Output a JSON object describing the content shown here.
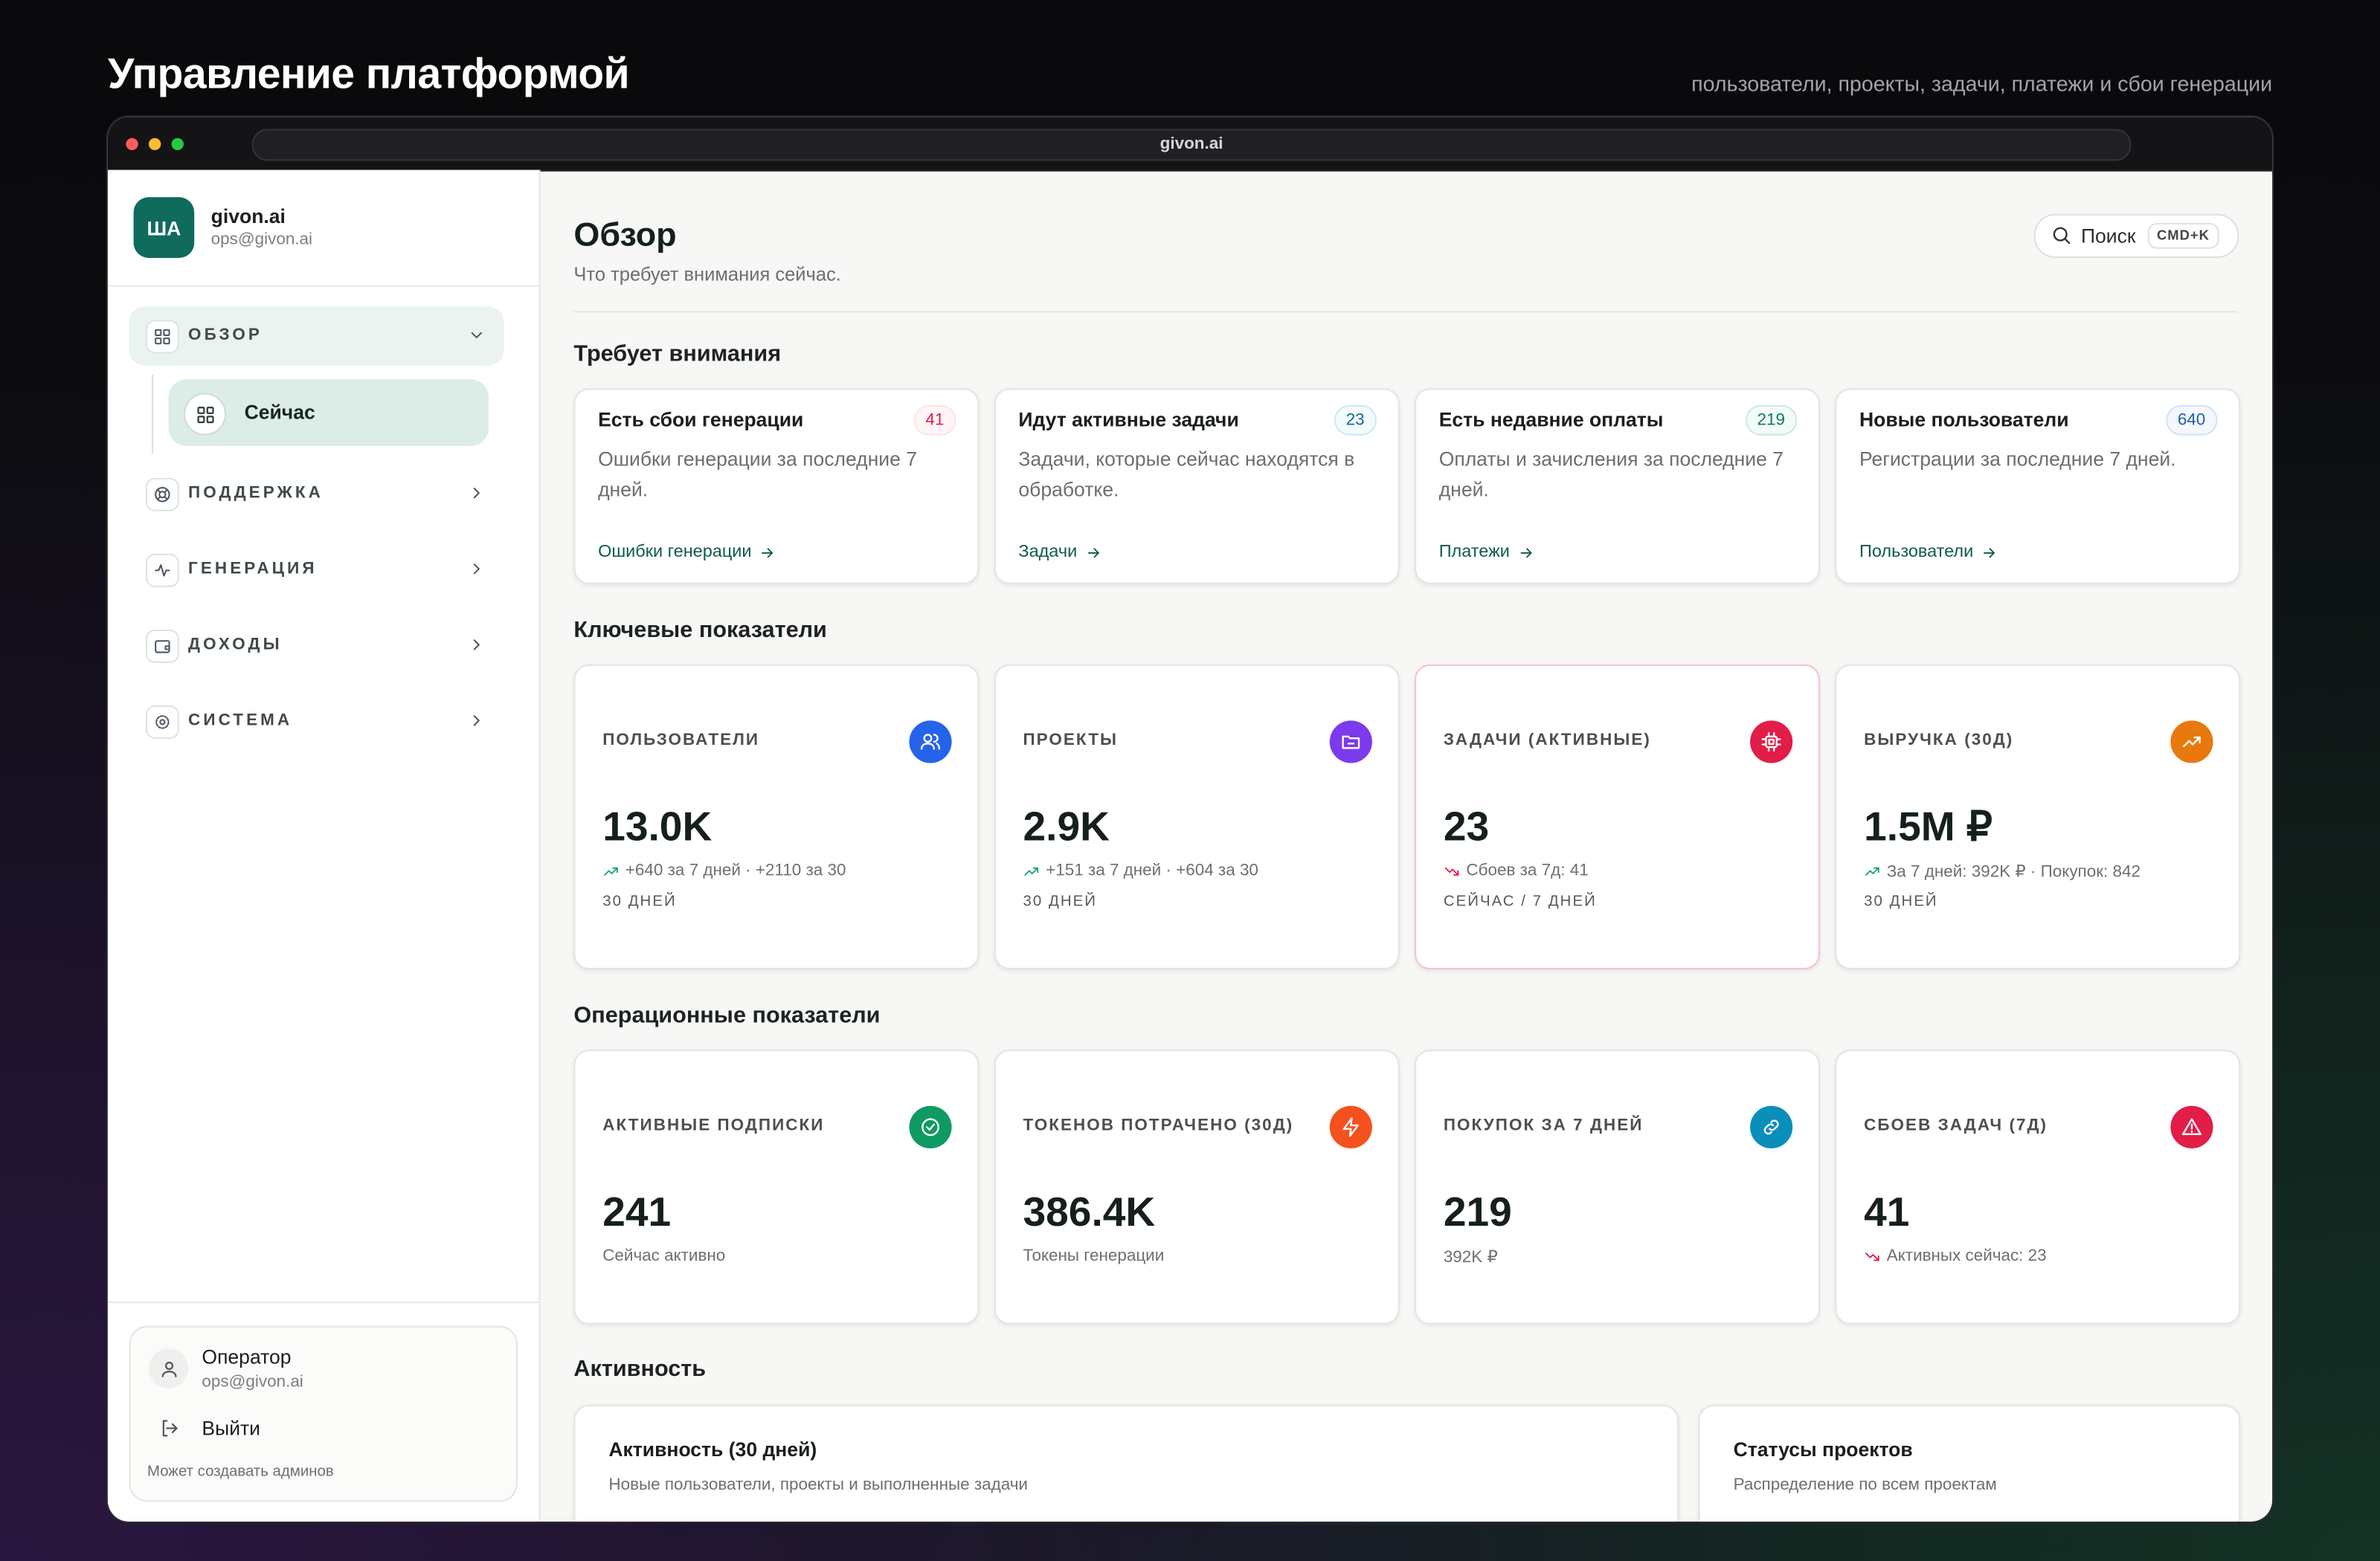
{
  "header": {
    "title": "Управление платформой",
    "subtitle": "пользователи, проекты, задачи, платежи и сбои генерации"
  },
  "browser": {
    "url": "givon.ai"
  },
  "sidebar": {
    "brand": {
      "avatar": "ША",
      "name": "givon.ai",
      "email": "ops@givon.ai"
    },
    "nav": [
      {
        "label": "ОБЗОР",
        "children": [
          "Сейчас"
        ]
      },
      {
        "label": "ПОДДЕРЖКА"
      },
      {
        "label": "ГЕНЕРАЦИЯ"
      },
      {
        "label": "ДОХОДЫ"
      },
      {
        "label": "СИСТЕМА"
      }
    ],
    "user": {
      "name": "Оператор",
      "email": "ops@givon.ai",
      "logout": "Выйти",
      "note": "Может создавать админов"
    }
  },
  "main": {
    "title": "Обзор",
    "subtitle": "Что требует внимания сейчас.",
    "search": {
      "label": "Поиск",
      "shortcut": "CMD+K"
    }
  },
  "attention": {
    "heading": "Требует внимания",
    "cards": [
      {
        "title": "Есть сбои генерации",
        "count": 41,
        "description": "Ошибки генерации за последние 7 дней.",
        "link": "Ошибки генерации"
      },
      {
        "title": "Идут активные задачи",
        "count": 23,
        "description": "Задачи, которые сейчас находятся в обработке.",
        "link": "Задачи"
      },
      {
        "title": "Есть недавние оплаты",
        "count": 219,
        "description": "Оплаты и зачисления за последние 7 дней.",
        "link": "Платежи"
      },
      {
        "title": "Новые пользователи",
        "count": 640,
        "description": "Регистрации за последние 7 дней.",
        "link": "Пользователи"
      }
    ]
  },
  "key_metrics": {
    "heading": "Ключевые показатели",
    "cards": [
      {
        "label": "ПОЛЬЗОВАТЕЛИ",
        "value": "13.0K",
        "detail": "+640 за 7 дней · +2110 за 30",
        "period": "30 ДНЕЙ",
        "trend": "up",
        "color": "#2563eb"
      },
      {
        "label": "ПРОЕКТЫ",
        "value": "2.9K",
        "detail": "+151 за 7 дней · +604 за 30",
        "period": "30 ДНЕЙ",
        "trend": "up",
        "color": "#7c3aed"
      },
      {
        "label": "ЗАДАЧИ (АКТИВНЫЕ)",
        "value": 23,
        "detail": "Сбоев за 7д: 41",
        "period": "СЕЙЧАС / 7 ДНЕЙ",
        "trend": "down",
        "color": "#e11d48"
      },
      {
        "label": "ВЫРУЧКА (30Д)",
        "value": "1.5M ₽",
        "detail": "За 7 дней: 392K ₽ · Покупок: 842",
        "period": "30 ДНЕЙ",
        "trend": "up",
        "color": "#e8790c"
      }
    ]
  },
  "ops_metrics": {
    "heading": "Операционные показатели",
    "cards": [
      {
        "label": "АКТИВНЫЕ ПОДПИСКИ",
        "value": 241,
        "detail": "Сейчас активно",
        "color": "#0f9a63"
      },
      {
        "label": "ТОКЕНОВ ПОТРАЧЕНО (30Д)",
        "value": "386.4K",
        "detail": "Токены генерации",
        "color": "#f4511e"
      },
      {
        "label": "ПОКУПОК ЗА 7 ДНЕЙ",
        "value": 219,
        "detail": "392K ₽",
        "color": "#0a8fba"
      },
      {
        "label": "СБОЕВ ЗАДАЧ (7Д)",
        "value": 41,
        "detail": "Активных сейчас: 23",
        "trend": "down",
        "color": "#e11d48"
      }
    ]
  },
  "activity": {
    "heading": "Активность",
    "panels": [
      {
        "title": "Активность (30 дней)",
        "subtitle": "Новые пользователи, проекты и выполненные задачи"
      },
      {
        "title": "Статусы проектов",
        "subtitle": "Распределение по всем проектам"
      }
    ]
  }
}
